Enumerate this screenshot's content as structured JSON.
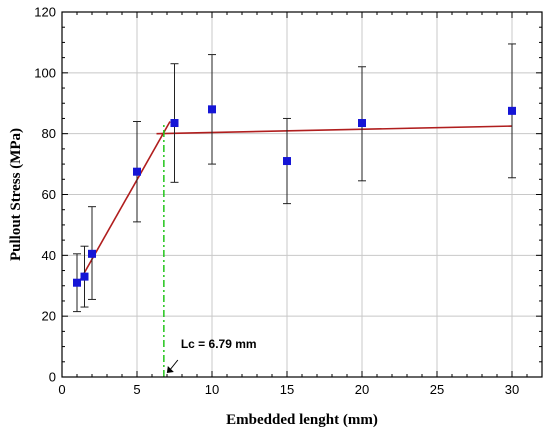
{
  "chart_data": {
    "type": "scatter",
    "xlabel": "Embedded lenght (mm)",
    "ylabel": "Pullout Stress (MPa)",
    "xlim": [
      0,
      32
    ],
    "ylim": [
      0,
      120
    ],
    "x_ticks": [
      0,
      5,
      10,
      15,
      20,
      25,
      30
    ],
    "y_ticks": [
      0,
      20,
      40,
      60,
      80,
      100,
      120
    ],
    "x_minor_step": 1,
    "y_minor_step": 5,
    "grid": true,
    "points": [
      {
        "x": 1,
        "y": 31,
        "err_low": 21.5,
        "err_high": 40.5
      },
      {
        "x": 1.5,
        "y": 33,
        "err_low": 23,
        "err_high": 43
      },
      {
        "x": 2,
        "y": 40.5,
        "err_low": 25.5,
        "err_high": 56
      },
      {
        "x": 5,
        "y": 67.5,
        "err_low": 51,
        "err_high": 84
      },
      {
        "x": 7.5,
        "y": 83.5,
        "err_low": 64,
        "err_high": 103
      },
      {
        "x": 10,
        "y": 88,
        "err_low": 70,
        "err_high": 106
      },
      {
        "x": 15,
        "y": 71,
        "err_low": 57,
        "err_high": 85
      },
      {
        "x": 20,
        "y": 83.5,
        "err_low": 64.5,
        "err_high": 102
      },
      {
        "x": 30,
        "y": 87.5,
        "err_low": 65.5,
        "err_high": 109.5
      }
    ],
    "fit_lines": [
      {
        "x": [
          1,
          7.2
        ],
        "y": [
          30,
          84
        ]
      },
      {
        "x": [
          6.3,
          30
        ],
        "y": [
          80,
          82.5
        ]
      }
    ],
    "critical_line": {
      "x": 6.79
    },
    "annotation": {
      "text": "Lc = 6.79 mm",
      "x": 6.79,
      "y": 0
    },
    "colors": {
      "marker": "#1515d6",
      "fit_line": "#b01e1e",
      "critical_line": "#22c41a",
      "error_bar": "#222222",
      "grid": "#c8c8c8"
    }
  }
}
